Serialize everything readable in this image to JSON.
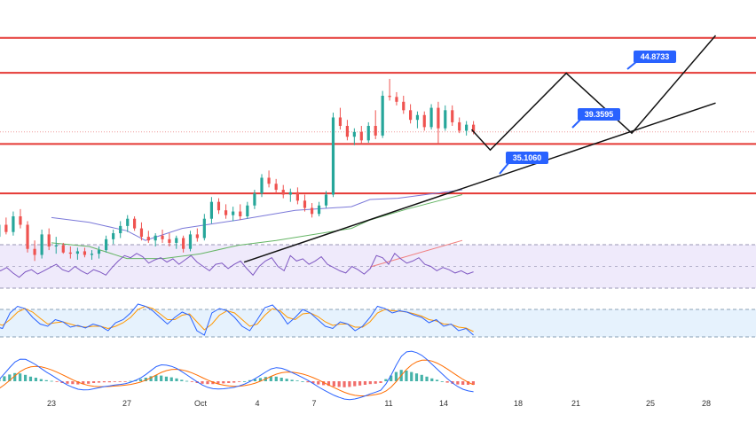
{
  "chart_data": {
    "type": "candlestick",
    "xlabel": "",
    "ylabel": "",
    "x_ticks": [
      "23",
      "27",
      "Oct",
      "4",
      "7",
      "11",
      "14",
      "18",
      "21",
      "25",
      "28"
    ],
    "price_labels": [
      {
        "value": 44.8733,
        "text": "44.8733"
      },
      {
        "value": 39.3595,
        "text": "39.3595"
      },
      {
        "value": 35.106,
        "text": "35.1060"
      }
    ],
    "horizontal_levels": [
      47.8,
      44.9,
      39.0,
      34.9
    ],
    "current_price": 40.0,
    "projection_path": [
      {
        "t": 18.5,
        "v": 40.2
      },
      {
        "t": 19.5,
        "v": 38.5
      },
      {
        "t": 23.5,
        "v": 44.87
      },
      {
        "t": 27.0,
        "v": 39.9
      },
      {
        "t": 31.5,
        "v": 48.0
      }
    ],
    "trend_lines": [
      {
        "from": {
          "t": 6.3,
          "v": 29.2
        },
        "to": {
          "t": 31.5,
          "v": 42.4
        }
      }
    ],
    "moving_averages": [
      {
        "color": "#7b79d9",
        "points": [
          [
            -4,
            32.9
          ],
          [
            -2,
            32.5
          ],
          [
            0,
            31.8
          ],
          [
            1,
            31.0
          ],
          [
            3,
            32.0
          ],
          [
            6,
            32.7
          ],
          [
            9,
            33.5
          ],
          [
            12,
            33.8
          ],
          [
            13,
            34.4
          ],
          [
            14.5,
            34.5
          ],
          [
            18,
            35.2
          ]
        ]
      },
      {
        "color": "#65b565",
        "points": [
          [
            -4,
            30.8
          ],
          [
            -2,
            30.5
          ],
          [
            0,
            29.5
          ],
          [
            2,
            29.5
          ],
          [
            4,
            29.9
          ],
          [
            6,
            30.6
          ],
          [
            8,
            31.0
          ],
          [
            12,
            32.0
          ],
          [
            13,
            32.7
          ],
          [
            15,
            33.6
          ],
          [
            18,
            34.8
          ]
        ]
      },
      {
        "color": "#f07f7f",
        "points": [
          [
            13,
            28.8
          ],
          [
            18,
            31.0
          ]
        ]
      }
    ],
    "candles": [
      {
        "o": 30.3,
        "h": 30.9,
        "l": 29.4,
        "c": 29.5
      },
      {
        "o": 29.5,
        "h": 30.5,
        "l": 29.0,
        "c": 30.1
      },
      {
        "o": 30.1,
        "h": 30.8,
        "l": 29.6,
        "c": 29.8
      },
      {
        "o": 29.8,
        "h": 31.6,
        "l": 29.7,
        "c": 31.3
      },
      {
        "o": 31.3,
        "h": 32.7,
        "l": 30.9,
        "c": 32.3
      },
      {
        "o": 32.3,
        "h": 32.9,
        "l": 31.5,
        "c": 31.7
      },
      {
        "o": 31.7,
        "h": 33.4,
        "l": 31.4,
        "c": 33.0
      },
      {
        "o": 33.0,
        "h": 33.6,
        "l": 32.0,
        "c": 32.3
      },
      {
        "o": 32.3,
        "h": 32.6,
        "l": 30.0,
        "c": 30.3
      },
      {
        "o": 30.3,
        "h": 31.0,
        "l": 29.3,
        "c": 29.8
      },
      {
        "o": 29.8,
        "h": 31.9,
        "l": 29.5,
        "c": 31.5
      },
      {
        "o": 31.5,
        "h": 32.0,
        "l": 30.2,
        "c": 30.5
      },
      {
        "o": 30.5,
        "h": 31.3,
        "l": 29.9,
        "c": 30.6
      },
      {
        "o": 30.6,
        "h": 30.8,
        "l": 29.9,
        "c": 30.0
      },
      {
        "o": 30.0,
        "h": 30.5,
        "l": 29.5,
        "c": 29.9
      },
      {
        "o": 29.9,
        "h": 30.4,
        "l": 29.4,
        "c": 30.1
      },
      {
        "o": 30.1,
        "h": 30.4,
        "l": 29.6,
        "c": 29.8
      },
      {
        "o": 29.8,
        "h": 30.2,
        "l": 29.4,
        "c": 29.9
      },
      {
        "o": 29.9,
        "h": 30.5,
        "l": 29.5,
        "c": 30.2
      },
      {
        "o": 30.2,
        "h": 31.4,
        "l": 30.0,
        "c": 31.1
      },
      {
        "o": 31.1,
        "h": 31.9,
        "l": 30.7,
        "c": 31.6
      },
      {
        "o": 31.6,
        "h": 32.6,
        "l": 31.2,
        "c": 32.2
      },
      {
        "o": 32.2,
        "h": 33.1,
        "l": 31.7,
        "c": 32.8
      },
      {
        "o": 32.8,
        "h": 33.0,
        "l": 31.8,
        "c": 32.0
      },
      {
        "o": 32.0,
        "h": 32.5,
        "l": 31.0,
        "c": 31.3
      },
      {
        "o": 31.3,
        "h": 31.8,
        "l": 30.8,
        "c": 31.0
      },
      {
        "o": 31.0,
        "h": 31.6,
        "l": 30.5,
        "c": 31.4
      },
      {
        "o": 31.4,
        "h": 31.9,
        "l": 30.8,
        "c": 31.1
      },
      {
        "o": 31.1,
        "h": 31.6,
        "l": 30.5,
        "c": 30.8
      },
      {
        "o": 30.8,
        "h": 31.4,
        "l": 30.3,
        "c": 31.2
      },
      {
        "o": 31.2,
        "h": 31.4,
        "l": 30.0,
        "c": 30.3
      },
      {
        "o": 30.3,
        "h": 31.8,
        "l": 30.1,
        "c": 31.5
      },
      {
        "o": 31.5,
        "h": 32.0,
        "l": 30.9,
        "c": 31.2
      },
      {
        "o": 31.2,
        "h": 33.2,
        "l": 31.0,
        "c": 32.8
      },
      {
        "o": 32.8,
        "h": 34.6,
        "l": 32.4,
        "c": 34.2
      },
      {
        "o": 34.2,
        "h": 34.5,
        "l": 33.2,
        "c": 33.5
      },
      {
        "o": 33.5,
        "h": 34.0,
        "l": 32.8,
        "c": 33.1
      },
      {
        "o": 33.1,
        "h": 33.8,
        "l": 32.6,
        "c": 33.4
      },
      {
        "o": 33.4,
        "h": 34.0,
        "l": 32.7,
        "c": 33.0
      },
      {
        "o": 33.0,
        "h": 34.2,
        "l": 32.8,
        "c": 33.9
      },
      {
        "o": 33.9,
        "h": 35.2,
        "l": 33.6,
        "c": 34.9
      },
      {
        "o": 34.9,
        "h": 36.5,
        "l": 34.6,
        "c": 36.2
      },
      {
        "o": 36.2,
        "h": 36.8,
        "l": 35.4,
        "c": 35.7
      },
      {
        "o": 35.7,
        "h": 36.1,
        "l": 34.9,
        "c": 35.2
      },
      {
        "o": 35.2,
        "h": 35.6,
        "l": 34.5,
        "c": 34.8
      },
      {
        "o": 34.8,
        "h": 35.3,
        "l": 34.2,
        "c": 35.0
      },
      {
        "o": 35.0,
        "h": 35.4,
        "l": 34.0,
        "c": 34.3
      },
      {
        "o": 34.3,
        "h": 34.8,
        "l": 33.4,
        "c": 33.7
      },
      {
        "o": 33.7,
        "h": 34.1,
        "l": 32.9,
        "c": 33.2
      },
      {
        "o": 33.2,
        "h": 34.2,
        "l": 33.0,
        "c": 33.9
      },
      {
        "o": 33.9,
        "h": 35.1,
        "l": 33.7,
        "c": 34.8
      },
      {
        "o": 34.8,
        "h": 41.6,
        "l": 34.6,
        "c": 41.2
      },
      {
        "o": 41.2,
        "h": 42.0,
        "l": 40.2,
        "c": 40.5
      },
      {
        "o": 40.5,
        "h": 41.0,
        "l": 39.3,
        "c": 39.6
      },
      {
        "o": 39.6,
        "h": 40.3,
        "l": 38.9,
        "c": 40.0
      },
      {
        "o": 40.0,
        "h": 40.5,
        "l": 39.0,
        "c": 39.3
      },
      {
        "o": 39.3,
        "h": 40.8,
        "l": 39.1,
        "c": 40.5
      },
      {
        "o": 40.5,
        "h": 41.8,
        "l": 39.4,
        "c": 39.7
      },
      {
        "o": 39.7,
        "h": 43.4,
        "l": 39.5,
        "c": 43.0
      },
      {
        "o": 43.0,
        "h": 44.4,
        "l": 42.6,
        "c": 42.9
      },
      {
        "o": 42.9,
        "h": 43.3,
        "l": 42.2,
        "c": 42.5
      },
      {
        "o": 42.5,
        "h": 43.0,
        "l": 41.5,
        "c": 41.8
      },
      {
        "o": 41.8,
        "h": 42.3,
        "l": 40.7,
        "c": 41.0
      },
      {
        "o": 41.0,
        "h": 41.7,
        "l": 40.3,
        "c": 41.4
      },
      {
        "o": 41.4,
        "h": 41.7,
        "l": 40.1,
        "c": 40.4
      },
      {
        "o": 40.4,
        "h": 42.3,
        "l": 40.2,
        "c": 42.0
      },
      {
        "o": 42.0,
        "h": 42.5,
        "l": 39.0,
        "c": 40.3
      },
      {
        "o": 40.3,
        "h": 42.2,
        "l": 40.1,
        "c": 41.8
      },
      {
        "o": 41.8,
        "h": 42.2,
        "l": 40.5,
        "c": 40.8
      },
      {
        "o": 40.8,
        "h": 41.2,
        "l": 39.9,
        "c": 40.1
      },
      {
        "o": 40.1,
        "h": 40.9,
        "l": 39.7,
        "c": 40.6
      },
      {
        "o": 40.6,
        "h": 40.9,
        "l": 39.8,
        "c": 40.0
      }
    ],
    "rsi_values": [
      38,
      33,
      35,
      41,
      37,
      43,
      48,
      46,
      49,
      44,
      40,
      45,
      47,
      43,
      46,
      49,
      52,
      47,
      45,
      50,
      46,
      43,
      47,
      45,
      42,
      49,
      55,
      60,
      58,
      62,
      59,
      53,
      56,
      58,
      54,
      57,
      52,
      56,
      60,
      54,
      50,
      46,
      52,
      53,
      48,
      52,
      55,
      48,
      42,
      50,
      55,
      58,
      50,
      46,
      60,
      55,
      57,
      52,
      55,
      59,
      52,
      49,
      46,
      44,
      50,
      47,
      43,
      48,
      60,
      58,
      52,
      62,
      57,
      53,
      55,
      58,
      52,
      50,
      46,
      49,
      47,
      44,
      46,
      43,
      45
    ],
    "stoch_k": [
      20,
      25,
      30,
      55,
      60,
      40,
      35,
      70,
      85,
      80,
      60,
      45,
      40,
      55,
      50,
      38,
      42,
      36,
      45,
      40,
      30,
      48,
      55,
      70,
      90,
      85,
      75,
      60,
      45,
      60,
      72,
      65,
      30,
      20,
      70,
      80,
      75,
      60,
      40,
      30,
      55,
      82,
      88,
      70,
      45,
      60,
      78,
      70,
      55,
      40,
      35,
      50,
      45,
      30,
      40,
      60,
      85,
      80,
      70,
      75,
      72,
      65,
      60,
      48,
      55,
      40,
      45,
      30,
      35,
      20
    ],
    "stoch_d": [
      25,
      25,
      28,
      40,
      50,
      48,
      42,
      55,
      72,
      80,
      72,
      58,
      45,
      48,
      50,
      45,
      40,
      38,
      40,
      40,
      35,
      40,
      48,
      60,
      78,
      85,
      80,
      68,
      55,
      55,
      65,
      68,
      50,
      32,
      45,
      65,
      75,
      70,
      55,
      40,
      45,
      65,
      80,
      75,
      60,
      55,
      68,
      70,
      62,
      50,
      42,
      45,
      45,
      38,
      38,
      50,
      70,
      78,
      75,
      74,
      72,
      68,
      63,
      55,
      52,
      45,
      44,
      38,
      36,
      28
    ],
    "macd_histogram": [
      -2.2,
      -2.0,
      -1.6,
      -1.3,
      -1.0,
      -0.6,
      -0.2,
      0.3,
      0.8,
      1.4,
      1.9,
      2.3,
      2.2,
      1.8,
      1.3,
      1.0,
      0.6,
      0.3,
      0.1,
      -0.2,
      -0.5,
      -0.7,
      -0.8,
      -0.9,
      -0.8,
      -0.7,
      -0.5,
      -0.4,
      -0.3,
      -0.3,
      -0.2,
      -0.2,
      -0.1,
      0.1,
      0.3,
      0.6,
      1.0,
      1.4,
      1.7,
      1.6,
      1.3,
      1.1,
      0.8,
      0.4,
      0.1,
      -0.2,
      -0.5,
      -0.7,
      -0.8,
      -0.8,
      -0.7,
      -0.6,
      -0.5,
      -0.4,
      -0.2,
      0.0,
      0.3,
      0.6,
      0.9,
      1.2,
      1.4,
      1.3,
      1.0,
      0.7,
      0.4,
      0.2,
      0.0,
      -0.3,
      -0.6,
      -0.9,
      -1.1,
      -1.3,
      -1.5,
      -1.6,
      -1.7,
      -1.6,
      -1.4,
      -1.2,
      -1.0,
      -0.8,
      -0.7,
      -0.5,
      0.6,
      1.6,
      2.6,
      3.2,
      3.0,
      2.6,
      2.2,
      1.8,
      1.3,
      0.8,
      0.4,
      0.0,
      -0.4,
      -0.7,
      -0.9,
      -1.0,
      -1.0,
      -1.0
    ]
  }
}
